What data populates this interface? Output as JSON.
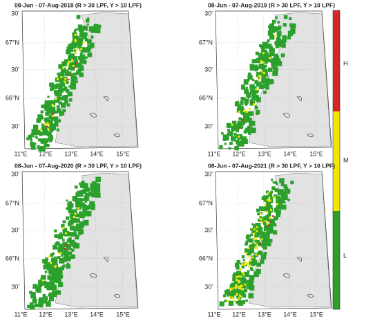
{
  "panels": [
    {
      "title": "08-Jun - 07-Aug-2018 (R > 30 LPF, Y > 10 LPF)",
      "lat_labels": [
        "30'",
        "67°N",
        "30'",
        "66°N",
        "30'"
      ],
      "lon_labels": [
        "11°E",
        "12°E",
        "13°E",
        "14°E",
        "15°E"
      ]
    },
    {
      "title": "08-Jun - 07-Aug-2019 (R > 30 LPF, Y > 10 LPF)",
      "lat_labels": [
        "30'",
        "67°N",
        "30'",
        "66°N",
        "30'"
      ],
      "lon_labels": [
        "11°E",
        "12°E",
        "13°E",
        "14°E",
        "15°E"
      ]
    },
    {
      "title": "08-Jun - 07-Aug-2020 (R > 30 LPF, Y > 10 LPF)",
      "lat_labels": [
        "30'",
        "67°N",
        "30'",
        "66°N",
        "30'"
      ],
      "lon_labels": [
        "11°E",
        "12°E",
        "13°E",
        "14°E",
        "15°E"
      ]
    },
    {
      "title": "08-Jun - 07-Aug-2021 (R > 30 LPF, Y > 10 LPF)",
      "lat_labels": [
        "30'",
        "67°N",
        "30'",
        "66°N",
        "30'"
      ],
      "lon_labels": [
        "11°E",
        "12°E",
        "13°E",
        "14°E",
        "15°E"
      ]
    }
  ],
  "colorbar": {
    "labels": [
      "H",
      "M",
      "L"
    ]
  }
}
